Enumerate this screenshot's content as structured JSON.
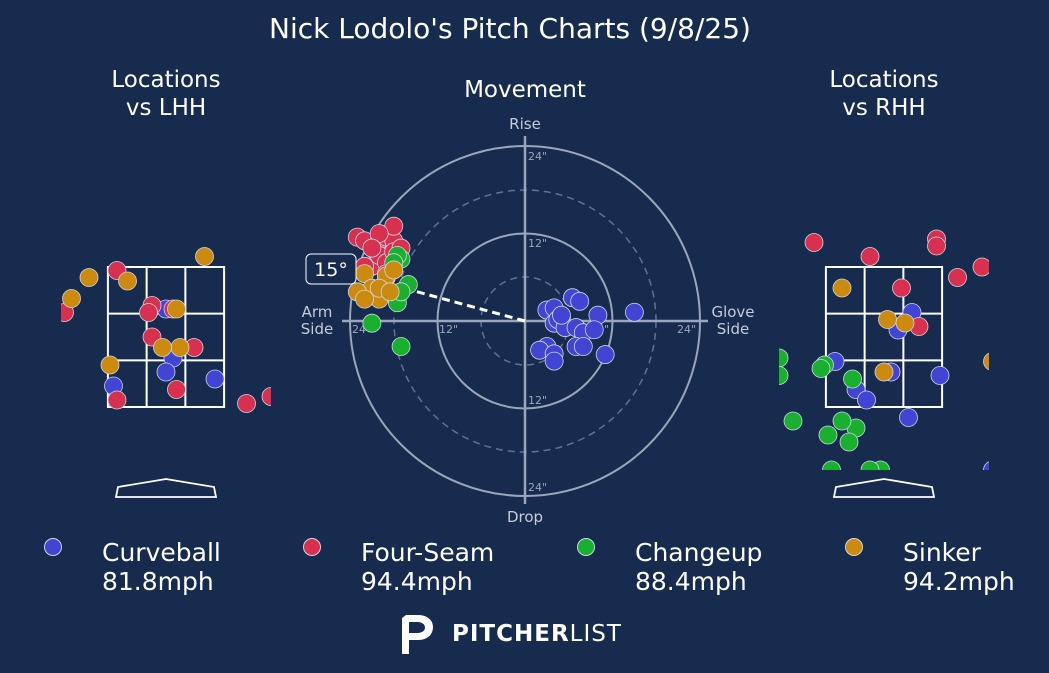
{
  "title": "Nick Lodolo's Pitch Charts (9/8/25)",
  "panels": {
    "left_title": [
      "Locations",
      "vs LHH"
    ],
    "center_title": "Movement",
    "right_title": [
      "Locations",
      "vs RHH"
    ]
  },
  "movement_labels": {
    "rise": "Rise",
    "drop": "Drop",
    "arm_side": [
      "Arm",
      "Side"
    ],
    "glove_side": [
      "Glove",
      "Side"
    ],
    "ring_12": "12\"",
    "ring_24": "24\"",
    "arm_angle": "15°"
  },
  "colors": {
    "background": "#162b4d",
    "Curveball": "#4244d4",
    "Four-Seam": "#d9304f",
    "Changeup": "#18b02e",
    "Sinker": "#cc8a0e"
  },
  "legend": [
    {
      "pitch": "Curveball",
      "speed": "81.8mph",
      "color": "#4244d4"
    },
    {
      "pitch": "Four-Seam",
      "speed": "94.4mph",
      "color": "#d9304f"
    },
    {
      "pitch": "Changeup",
      "speed": "88.4mph",
      "color": "#18b02e"
    },
    {
      "pitch": "Sinker",
      "speed": "94.2mph",
      "color": "#cc8a0e"
    }
  ],
  "brand": {
    "bold": "PITCHER",
    "light": "LIST",
    "icon": "pitcherlist-logo-icon"
  },
  "chart_data": [
    {
      "type": "scatter",
      "title": "Locations vs LHH",
      "xlim": [
        -2.5,
        2.5
      ],
      "ylim": [
        0,
        5
      ],
      "strike_zone": {
        "x": [
          -0.83,
          0.83
        ],
        "y": [
          1.5,
          3.5
        ]
      },
      "series": [
        {
          "name": "Curveball",
          "points": [
            [
              0.0,
              2.9
            ],
            [
              0.1,
              2.2
            ],
            [
              0.0,
              2.0
            ],
            [
              0.7,
              1.9
            ],
            [
              -0.75,
              1.8
            ],
            [
              1.5,
              0.3
            ]
          ]
        },
        {
          "name": "Four-Seam",
          "points": [
            [
              -0.7,
              3.45
            ],
            [
              -0.2,
              2.95
            ],
            [
              -0.25,
              2.85
            ],
            [
              0.1,
              2.9
            ],
            [
              -0.2,
              2.5
            ],
            [
              0.4,
              2.35
            ],
            [
              0.15,
              1.75
            ],
            [
              -0.7,
              1.6
            ],
            [
              1.15,
              1.55
            ],
            [
              1.5,
              1.65
            ],
            [
              -1.45,
              2.85
            ]
          ]
        },
        {
          "name": "Sinker",
          "points": [
            [
              0.55,
              3.65
            ],
            [
              -1.1,
              3.35
            ],
            [
              -0.55,
              3.3
            ],
            [
              -1.35,
              3.05
            ],
            [
              0.15,
              2.9
            ],
            [
              0.2,
              2.35
            ],
            [
              -0.05,
              2.35
            ],
            [
              -0.8,
              2.1
            ]
          ]
        }
      ]
    },
    {
      "type": "scatter",
      "title": "Movement",
      "xlabel": "Arm Side / Glove Side",
      "ylabel": "Drop / Rise",
      "xlim": [
        -24,
        24
      ],
      "ylim": [
        -24,
        24
      ],
      "rings": [
        6,
        12,
        18,
        24
      ],
      "arm_angle_deg": 15,
      "series": [
        {
          "name": "Curveball",
          "points": [
            [
              3,
              1.5
            ],
            [
              4,
              1.8
            ],
            [
              5,
              0.5
            ],
            [
              6.5,
              3.2
            ],
            [
              4,
              -0.3
            ],
            [
              4.5,
              0.2
            ],
            [
              5.5,
              -0.9
            ],
            [
              7,
              -0.9
            ],
            [
              8,
              -1.6
            ],
            [
              10,
              0.8
            ],
            [
              15,
              1.2
            ],
            [
              3,
              -3.5
            ],
            [
              2,
              -4
            ],
            [
              4,
              -4.5
            ],
            [
              7,
              -3.5
            ],
            [
              8,
              -3.5
            ],
            [
              11,
              -4.6
            ],
            [
              4,
              -5.5
            ],
            [
              5,
              0.8
            ],
            [
              7.5,
              2.7
            ],
            [
              9.5,
              -1.2
            ]
          ]
        },
        {
          "name": "Four-Seam",
          "points": [
            [
              -23,
              11.5
            ],
            [
              -22,
              11
            ],
            [
              -20,
              11
            ],
            [
              -19,
              11.5
            ],
            [
              -18,
              11
            ],
            [
              -18,
              13
            ],
            [
              -20,
              12
            ],
            [
              -21,
              7.5
            ],
            [
              -20,
              9
            ],
            [
              -19,
              8
            ],
            [
              -18,
              9.5
            ],
            [
              -17,
              10
            ],
            [
              -22,
              7.5
            ],
            [
              -19,
              6.5
            ],
            [
              -21,
              10
            ]
          ]
        },
        {
          "name": "Changeup",
          "points": [
            [
              -16,
              5
            ],
            [
              -17,
              8.5
            ],
            [
              -17.5,
              9
            ],
            [
              -18,
              8
            ],
            [
              -19,
              6
            ],
            [
              -17.5,
              2.5
            ],
            [
              -17,
              4
            ],
            [
              -21,
              -0.3
            ],
            [
              -17,
              -3.5
            ]
          ]
        },
        {
          "name": "Sinker",
          "points": [
            [
              -22,
              6.5
            ],
            [
              -21,
              4.5
            ],
            [
              -23,
              4
            ],
            [
              -20,
              3
            ],
            [
              -19,
              6.2
            ],
            [
              -18,
              7
            ],
            [
              -22,
              3
            ],
            [
              -20,
              4.5
            ],
            [
              -18.5,
              4
            ]
          ]
        }
      ]
    },
    {
      "type": "scatter",
      "title": "Locations vs RHH",
      "xlim": [
        -2.5,
        2.5
      ],
      "ylim": [
        0,
        5
      ],
      "strike_zone": {
        "x": [
          -0.83,
          0.83
        ],
        "y": [
          1.5,
          3.5
        ]
      },
      "series": [
        {
          "name": "Curveball",
          "points": [
            [
              0.4,
              2.85
            ],
            [
              0.2,
              2.6
            ],
            [
              -0.7,
              2.15
            ],
            [
              0.1,
              2.0
            ],
            [
              -0.4,
              1.75
            ],
            [
              0.8,
              1.95
            ],
            [
              -0.25,
              1.6
            ],
            [
              0.35,
              1.35
            ],
            [
              1.9,
              1.65
            ],
            [
              1.55,
              0.6
            ],
            [
              2.2,
              0.7
            ]
          ]
        },
        {
          "name": "Four-Seam",
          "points": [
            [
              -1.75,
              3.9
            ],
            [
              -1.0,
              3.85
            ],
            [
              -0.2,
              3.65
            ],
            [
              0.75,
              3.9
            ],
            [
              0.75,
              3.8
            ],
            [
              1.4,
              3.5
            ],
            [
              1.7,
              3.4
            ],
            [
              1.05,
              3.35
            ],
            [
              0.25,
              3.2
            ],
            [
              0.5,
              2.65
            ]
          ]
        },
        {
          "name": "Changeup",
          "points": [
            [
              -1.5,
              2.2
            ],
            [
              -0.85,
              2.1
            ],
            [
              -0.9,
              2.05
            ],
            [
              -0.45,
              1.9
            ],
            [
              -1.7,
              1.5
            ],
            [
              -1.8,
              1.3
            ],
            [
              -1.3,
              1.3
            ],
            [
              -0.8,
              1.1
            ],
            [
              -0.4,
              1.2
            ],
            [
              -0.6,
              1.3
            ],
            [
              -0.5,
              1.0
            ],
            [
              -0.75,
              0.6
            ],
            [
              -0.05,
              0.6
            ],
            [
              -0.2,
              0.6
            ],
            [
              -0.85,
              0.3
            ],
            [
              1.9,
              0.7
            ],
            [
              -1.5,
              1.95
            ]
          ]
        },
        {
          "name": "Sinker",
          "points": [
            [
              -0.6,
              3.2
            ],
            [
              0.05,
              2.75
            ],
            [
              0.3,
              2.7
            ],
            [
              1.55,
              2.15
            ],
            [
              0.0,
              2.0
            ]
          ]
        }
      ]
    }
  ]
}
